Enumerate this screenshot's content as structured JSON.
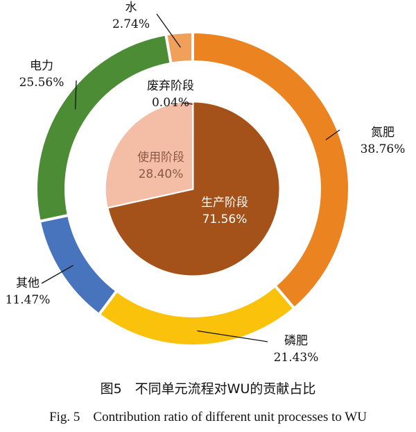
{
  "chart_data": {
    "type": "pie",
    "style": "nested-donut",
    "inner": [
      {
        "label": "生产阶段",
        "value": 71.56,
        "value_text": "71.56%",
        "color": "#a5511a"
      },
      {
        "label": "使用阶段",
        "value": 28.4,
        "value_text": "28.40%",
        "color": "#f4bda5"
      },
      {
        "label": "废弃阶段",
        "value": 0.04,
        "value_text": "0.04%",
        "color": "#ffffff"
      }
    ],
    "outer": [
      {
        "label": "氮肥",
        "value": 38.76,
        "value_text": "38.76%",
        "color": "#ea8320"
      },
      {
        "label": "磷肥",
        "value": 21.43,
        "value_text": "21.43%",
        "color": "#fbc20b"
      },
      {
        "label": "其他",
        "value": 11.47,
        "value_text": "11.47%",
        "color": "#4874be"
      },
      {
        "label": "电力",
        "value": 25.56,
        "value_text": "25.56%",
        "color": "#4b8c34"
      },
      {
        "label": "水",
        "value": 2.74,
        "value_text": "2.74%",
        "color": "#f0a05a"
      }
    ]
  },
  "caption": {
    "cn": "图5　不同单元流程对WU的贡献占比",
    "en": "Fig. 5    Contribution ratio of different unit processes to WU"
  }
}
